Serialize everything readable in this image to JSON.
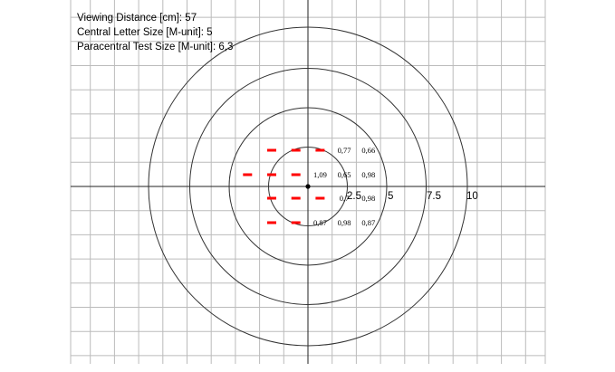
{
  "info": {
    "viewing_distance": "Viewing Distance [cm]: 57",
    "central_letter_size": "Central Letter Size [M-unit]: 5",
    "paracentral_test_size": "Paracentral Test Size [M-unit]: 6,3"
  },
  "rings": [
    {
      "label": "2.5"
    },
    {
      "label": "5"
    },
    {
      "label": "7.5"
    },
    {
      "label": "10"
    }
  ],
  "marker_color": "#ff0000",
  "markers": [
    {
      "col": -1,
      "row": 0
    },
    {
      "col": 0,
      "row": 0
    },
    {
      "col": 1,
      "row": 0
    },
    {
      "col": -2,
      "row": 1
    },
    {
      "col": -1,
      "row": 1
    },
    {
      "col": 0,
      "row": 1
    },
    {
      "col": -1,
      "row": 2
    },
    {
      "col": 0,
      "row": 2
    },
    {
      "col": 1,
      "row": 2
    },
    {
      "col": -1,
      "row": 3
    },
    {
      "col": 0,
      "row": 3
    }
  ],
  "values": [
    {
      "col": 2,
      "row": 0,
      "text": "0,77"
    },
    {
      "col": 3,
      "row": 0,
      "text": "0,66"
    },
    {
      "col": 1,
      "row": 1,
      "text": "1,09"
    },
    {
      "col": 2,
      "row": 1,
      "text": "0,65"
    },
    {
      "col": 3,
      "row": 1,
      "text": "0,98"
    },
    {
      "col": 2,
      "row": 2,
      "text": "0,7"
    },
    {
      "col": 3,
      "row": 2,
      "text": "0,98"
    },
    {
      "col": 1,
      "row": 3,
      "text": "0,87"
    },
    {
      "col": 2,
      "row": 3,
      "text": "0,98"
    },
    {
      "col": 3,
      "row": 3,
      "text": "0,87"
    }
  ]
}
